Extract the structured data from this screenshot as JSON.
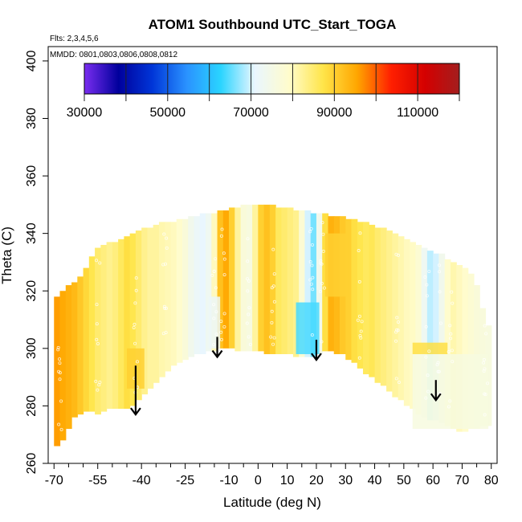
{
  "chart_data": {
    "type": "heatmap",
    "title": "ATOM1 Southbound UTC_Start_TOGA",
    "annotations": {
      "flights": "Flts: 2,3,4,5,6",
      "dates": "MMDD: 0801,0803,0806,0808,0812"
    },
    "xlabel": "Latitude (deg N)",
    "ylabel": "Theta (C)",
    "xlim": [
      -72,
      82
    ],
    "ylim": [
      260,
      405
    ],
    "x_ticks": [
      -70,
      -55,
      -40,
      -25,
      -10,
      0,
      10,
      20,
      30,
      40,
      50,
      60,
      70,
      80
    ],
    "x_tick_labels": [
      "-70",
      "-55",
      "-40",
      "-25",
      "-10",
      "0",
      "10",
      "20",
      "30",
      "40",
      "50",
      "60",
      "70",
      "80"
    ],
    "x_minor_ticks": [
      -65,
      -60,
      -50,
      -45,
      -35,
      -30,
      -20,
      -15,
      -5,
      5,
      15,
      25,
      35,
      45,
      55,
      65,
      75
    ],
    "y_ticks": [
      260,
      280,
      300,
      320,
      340,
      360,
      380,
      400
    ],
    "y_tick_labels": [
      "260",
      "280",
      "300",
      "320",
      "340",
      "360",
      "380",
      "400"
    ],
    "colorbar": {
      "range": [
        30000,
        120000
      ],
      "ticks": [
        30000,
        50000,
        70000,
        90000,
        110000
      ],
      "tick_labels": [
        "30000",
        "50000",
        "70000",
        "90000",
        "110000"
      ],
      "boundaries": [
        30000,
        40000,
        50000,
        60000,
        70000,
        80000,
        90000,
        100000,
        110000,
        120000
      ],
      "colors": [
        "#7a2df0",
        "#00009c",
        "#0036d8",
        "#2a92ff",
        "#2ad4ff",
        "#e9f6ff",
        "#fffccc",
        "#ffe54a",
        "#ffa600",
        "#ff1f00",
        "#d40000",
        "#a31e1e"
      ]
    },
    "latitudes": [
      -69,
      -67,
      -65,
      -63,
      -61,
      -59,
      -57,
      -55,
      -53,
      -51,
      -49,
      -47,
      -45,
      -43,
      -41,
      -39,
      -37,
      -35,
      -33,
      -31,
      -29,
      -27,
      -25,
      -23,
      -21,
      -19,
      -17,
      -15,
      -13,
      -11,
      -9,
      -7,
      -5,
      -3,
      -1,
      1,
      3,
      5,
      7,
      9,
      11,
      13,
      15,
      17,
      19,
      21,
      23,
      25,
      27,
      29,
      31,
      33,
      35,
      37,
      39,
      41,
      43,
      45,
      47,
      49,
      51,
      53,
      55,
      57,
      59,
      61,
      63,
      65,
      67,
      69,
      71,
      73,
      75,
      77,
      79
    ],
    "column_values": [
      96000,
      95000,
      94000,
      93000,
      91000,
      89000,
      87000,
      85000,
      84000,
      83000,
      84000,
      86000,
      88000,
      87000,
      85000,
      83000,
      82000,
      82000,
      81000,
      80500,
      80000,
      79000,
      77000,
      74000,
      72000,
      71000,
      73000,
      80000,
      92000,
      95000,
      90000,
      82000,
      77000,
      76000,
      82000,
      90000,
      92000,
      90000,
      86000,
      85000,
      84000,
      83000,
      78000,
      70000,
      66000,
      74000,
      88000,
      94000,
      93000,
      91000,
      90000,
      88000,
      87000,
      86000,
      86500,
      85000,
      84000,
      83000,
      82000,
      81000,
      80000,
      79500,
      78000,
      73000,
      69000,
      70000,
      74000,
      79000,
      81000,
      80000,
      79000,
      78000,
      77000,
      76500,
      76000
    ],
    "column_theta_ranges": [
      [
        266,
        318
      ],
      [
        268,
        320
      ],
      [
        272,
        322
      ],
      [
        276,
        323
      ],
      [
        277,
        325
      ],
      [
        278,
        328
      ],
      [
        278,
        332
      ],
      [
        277,
        335
      ],
      [
        278,
        336
      ],
      [
        279,
        337
      ],
      [
        279,
        337
      ],
      [
        279,
        338
      ],
      [
        279,
        339
      ],
      [
        280,
        340
      ],
      [
        282,
        341
      ],
      [
        284,
        342
      ],
      [
        286,
        342
      ],
      [
        288,
        343
      ],
      [
        290,
        344
      ],
      [
        292,
        344
      ],
      [
        294,
        344
      ],
      [
        295,
        345
      ],
      [
        296,
        345
      ],
      [
        297,
        346
      ],
      [
        298,
        346
      ],
      [
        298,
        347
      ],
      [
        299,
        347
      ],
      [
        299,
        347
      ],
      [
        300,
        348
      ],
      [
        300,
        348
      ],
      [
        300,
        349
      ],
      [
        299,
        349
      ],
      [
        299,
        350
      ],
      [
        299,
        350
      ],
      [
        299,
        350
      ],
      [
        299,
        350
      ],
      [
        298,
        350
      ],
      [
        298,
        350
      ],
      [
        298,
        349
      ],
      [
        298,
        349
      ],
      [
        298,
        349
      ],
      [
        297,
        348
      ],
      [
        297,
        348
      ],
      [
        297,
        348
      ],
      [
        297,
        347
      ],
      [
        298,
        347
      ],
      [
        299,
        347
      ],
      [
        299,
        346
      ],
      [
        298,
        346
      ],
      [
        298,
        346
      ],
      [
        296,
        345
      ],
      [
        295,
        345
      ],
      [
        293,
        344
      ],
      [
        291,
        344
      ],
      [
        290,
        343
      ],
      [
        288,
        342
      ],
      [
        287,
        342
      ],
      [
        285,
        341
      ],
      [
        283,
        340
      ],
      [
        282,
        339
      ],
      [
        280,
        338
      ],
      [
        279,
        337
      ],
      [
        277,
        336
      ],
      [
        276,
        335
      ],
      [
        275,
        334
      ],
      [
        275,
        333
      ],
      [
        274,
        333
      ],
      [
        273,
        331
      ],
      [
        272,
        330
      ],
      [
        271,
        329
      ],
      [
        271,
        328
      ],
      [
        272,
        326
      ],
      [
        272,
        322
      ],
      [
        273,
        314
      ],
      [
        273,
        308
      ]
    ],
    "features": [
      {
        "lat_range": [
          -45,
          -39
        ],
        "theta_range": [
          286,
          300
        ],
        "value": 90000
      },
      {
        "lat_range": [
          -17,
          -13
        ],
        "theta_range": [
          300,
          318
        ],
        "value": 72000
      },
      {
        "lat_range": [
          13,
          21
        ],
        "theta_range": [
          298,
          316
        ],
        "value": 64000
      },
      {
        "lat_range": [
          23,
          31
        ],
        "theta_range": [
          318,
          340
        ],
        "value": 90000
      },
      {
        "lat_range": [
          53,
          79
        ],
        "theta_range": [
          272,
          298
        ],
        "value": 76000
      },
      {
        "lat_range": [
          53,
          65
        ],
        "theta_range": [
          298,
          302
        ],
        "value": 88000
      }
    ],
    "arrows": [
      {
        "lat": -42,
        "theta_start": 294,
        "theta_end": 277
      },
      {
        "lat": -14,
        "theta_start": 304,
        "theta_end": 297
      },
      {
        "lat": 20,
        "theta_start": 303,
        "theta_end": 296
      },
      {
        "lat": 61,
        "theta_start": 289,
        "theta_end": 282
      }
    ]
  }
}
